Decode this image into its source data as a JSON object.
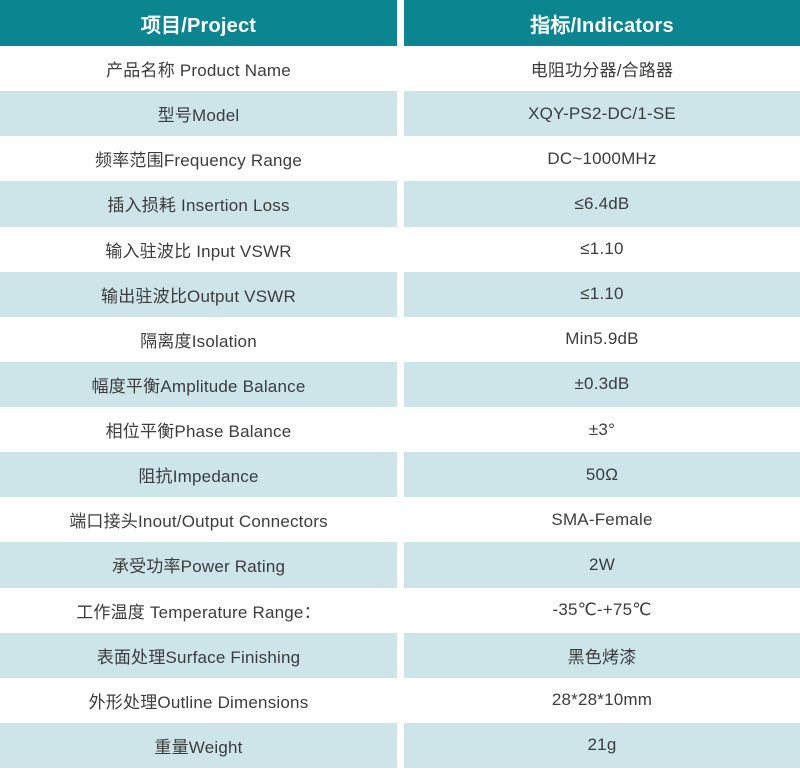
{
  "colors": {
    "header_bg": "#0b8691",
    "header_text": "#ffffff",
    "row_white_bg": "#ffffff",
    "row_alt_bg": "#cde4e9",
    "body_text": "#3c3c3c",
    "divider": "#ffffff"
  },
  "table": {
    "header": {
      "project": "项目/Project",
      "indicator": "指标/Indicators"
    },
    "rows": [
      {
        "project": "产品名称 Product Name",
        "indicator": "电阻功分器/合路器"
      },
      {
        "project": "型号Model",
        "indicator": "XQY-PS2-DC/1-SE"
      },
      {
        "project": "频率范围Frequency Range",
        "indicator": "DC~1000MHz"
      },
      {
        "project": "插入损耗 Insertion Loss",
        "indicator": "≤6.4dB"
      },
      {
        "project": "输入驻波比 Input VSWR",
        "indicator": "≤1.10"
      },
      {
        "project": "输出驻波比Output VSWR",
        "indicator": "≤1.10"
      },
      {
        "project": "隔离度Isolation",
        "indicator": "Min5.9dB"
      },
      {
        "project": "幅度平衡Amplitude Balance",
        "indicator": "±0.3dB"
      },
      {
        "project": "相位平衡Phase Balance",
        "indicator": "±3°"
      },
      {
        "project": "阻抗Impedance",
        "indicator": "50Ω"
      },
      {
        "project": "端口接头Inout/Output Connectors",
        "indicator": "SMA-Female"
      },
      {
        "project": "承受功率Power Rating",
        "indicator": "2W"
      },
      {
        "project": "工作温度 Temperature Range：",
        "indicator": "-35℃-+75℃"
      },
      {
        "project": "表面处理Surface Finishing",
        "indicator": "黑色烤漆"
      },
      {
        "project": "外形处理Outline Dimensions",
        "indicator": "28*28*10mm"
      },
      {
        "project": "重量Weight",
        "indicator": "21g"
      }
    ]
  }
}
